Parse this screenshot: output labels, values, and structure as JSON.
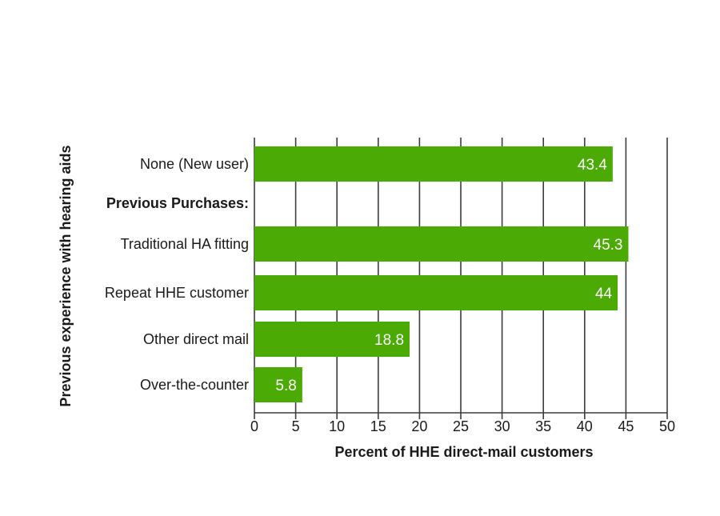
{
  "chart_data": {
    "type": "bar",
    "orientation": "horizontal",
    "categories": [
      "None (New user)",
      "Previous Purchases:",
      "Traditional HA fitting",
      "Repeat HHE customer",
      "Other direct mail",
      "Over-the-counter"
    ],
    "values": [
      43.4,
      null,
      45.3,
      44,
      18.8,
      5.8
    ],
    "value_labels": [
      "43.4",
      "",
      "45.3",
      "44",
      "18.8",
      "5.8"
    ],
    "bold_categories": [
      "Previous Purchases:"
    ],
    "xlabel": "Percent of HHE direct-mail customers",
    "ylabel": "Previous experience with hearing aids",
    "xlim": [
      0,
      50
    ],
    "xticks": [
      "0",
      "5",
      "10",
      "15",
      "20",
      "25",
      "30",
      "35",
      "40",
      "45",
      "50"
    ],
    "grid": "vertical",
    "colors": {
      "bar": "#4caa05",
      "bar_label": "#ffffff",
      "grid": "#3c3c3c",
      "text": "#1a1a1a"
    }
  }
}
